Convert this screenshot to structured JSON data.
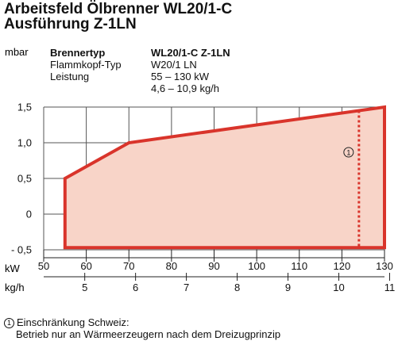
{
  "title": {
    "line1": "Arbeitsfeld Ölbrenner WL20/1-C",
    "line2": "Ausführung Z-1LN"
  },
  "info_table": {
    "rows": [
      {
        "label": "Brennertyp",
        "value": "WL20/1-C Z-1LN",
        "bold": true
      },
      {
        "label": "Flammkopf-Typ",
        "value": "W20/1 LN",
        "bold": false
      },
      {
        "label": "Leistung",
        "value": "55 – 130 kW",
        "bold": false
      },
      {
        "label": "",
        "value": "4,6 – 10,9 kg/h",
        "bold": false
      }
    ]
  },
  "footnote": {
    "marker": "1",
    "line1": "Einschränkung Schweiz:",
    "line2": "Betrieb nur an Wärmeerzeugern nach dem Dreizugprinzip"
  },
  "colors": {
    "boundary": "#d9342b",
    "fill": "#f8d4c8",
    "grid": "#555555"
  },
  "chart_data": {
    "type": "area",
    "ylabel": "mbar",
    "x_unit": "kW",
    "x2_unit": "kg/h",
    "xlim": [
      50,
      130
    ],
    "ylim": [
      -0.5,
      1.5
    ],
    "x_ticks": [
      50,
      60,
      70,
      80,
      90,
      100,
      110,
      120,
      130
    ],
    "x_tick_labels": [
      "50",
      "60",
      "70",
      "80",
      "90",
      "100",
      "110",
      "120",
      "130"
    ],
    "y_ticks": [
      -0.5,
      0,
      0.5,
      1.0,
      1.5
    ],
    "y_tick_labels": [
      "- 0,5",
      "0",
      "0,5",
      "1,0",
      "1,5"
    ],
    "x2_ticks": [
      5,
      6,
      7,
      8,
      9,
      10,
      11
    ],
    "x2_tick_labels": [
      "5",
      "6",
      "7",
      "8",
      "9",
      "10",
      "11"
    ],
    "x2_per_kw": 0.08384,
    "grid": true,
    "series": [
      {
        "x": [
          55,
          55,
          70,
          130,
          130
        ],
        "y": [
          -0.47,
          0.5,
          1.0,
          1.5,
          -0.47
        ]
      }
    ],
    "limit_line": {
      "marker": "1",
      "x": 124,
      "y_from": -0.47,
      "y_to": 1.45
    }
  }
}
